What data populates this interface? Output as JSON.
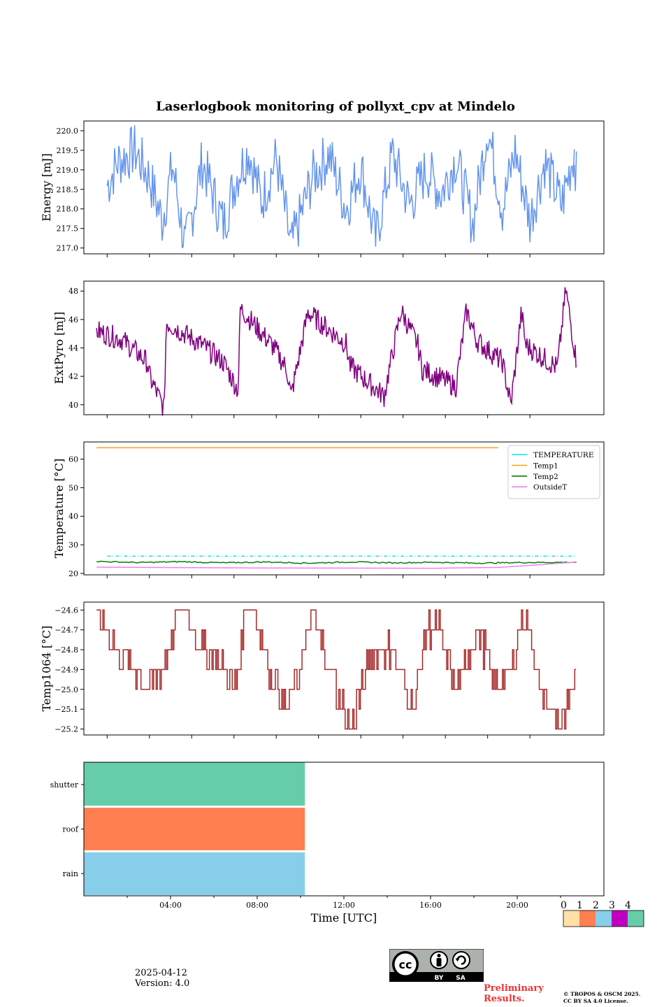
{
  "title": "Laserlogbook monitoring of pollyxt_cpv at Mindelo",
  "chart_data": [
    {
      "type": "line",
      "ylabel": "Energy [mJ]",
      "ylim": [
        216.85,
        220.25
      ],
      "yticks": [
        "217.0",
        "217.5",
        "218.0",
        "218.5",
        "219.0",
        "219.5",
        "220.0"
      ],
      "xlim": [
        -0.6,
        24.0
      ],
      "grid": false,
      "series": [
        {
          "color": "#6495ed",
          "style": "noisy-daily",
          "x": [
            0.5,
            1.0,
            1.8,
            2.5,
            3.1,
            3.6,
            4.2,
            5.0,
            6.0,
            6.6,
            7.2,
            7.8,
            8.5,
            9.2,
            10.2,
            11.0,
            11.8,
            12.5,
            13.2,
            14.0,
            14.8,
            15.6,
            16.3,
            17.0,
            17.8,
            18.5,
            19.2,
            19.8,
            20.5,
            21.2,
            22.0,
            22.6
          ],
          "y": [
            218.6,
            219.2,
            219.5,
            218.8,
            217.7,
            219.1,
            217.0,
            219.2,
            217.6,
            218.8,
            219.5,
            218.2,
            219.3,
            217.0,
            218.8,
            219.4,
            218.0,
            219.1,
            217.2,
            219.4,
            218.1,
            219.0,
            218.4,
            219.3,
            217.6,
            220.1,
            218.0,
            219.5,
            217.7,
            219.2,
            218.1,
            219.5
          ]
        },
        {
          "color": "#6495ed",
          "style": "noisy-daily",
          "x": [
            22.6,
            22.7
          ],
          "y": [
            219.5,
            218.8
          ]
        }
      ]
    },
    {
      "type": "line",
      "ylabel": "ExtPyro [mJ]",
      "ylim": [
        39.3,
        48.7
      ],
      "yticks": [
        "40",
        "42",
        "44",
        "46",
        "48"
      ],
      "xlim": [
        -0.6,
        24.0
      ],
      "grid": false,
      "series": [
        {
          "color": "#800080",
          "style": "noisy-sawtooth",
          "x": [
            0.0,
            1.2,
            2.4,
            2.5,
            3.2,
            3.3,
            5.0,
            6.0,
            6.7,
            6.8,
            8.4,
            9.0,
            9.2,
            10.0,
            11.8,
            12.0,
            13.6,
            14.4,
            15.2,
            15.4,
            17.0,
            17.5,
            18.0,
            19.2,
            19.6,
            20.1,
            20.3,
            21.8,
            22.2,
            22.7
          ],
          "y": [
            45.2,
            44.6,
            43.0,
            42.0,
            39.7,
            45.8,
            44.2,
            43.0,
            41.0,
            46.8,
            44.0,
            42.5,
            40.6,
            46.5,
            44.3,
            42.7,
            40.6,
            46.6,
            44.2,
            42.5,
            41.3,
            46.6,
            44.5,
            43.0,
            40.0,
            46.5,
            44.2,
            42.6,
            48.1,
            43.0
          ]
        }
      ]
    },
    {
      "type": "line",
      "ylabel": "Temperature [°C]",
      "ylim": [
        19.5,
        66.0
      ],
      "yticks": [
        "20",
        "30",
        "40",
        "50",
        "60"
      ],
      "xlim": [
        -0.6,
        24.0
      ],
      "grid": false,
      "legend": "top-right",
      "series": [
        {
          "name": "TEMPERATURE",
          "color": "#00e5ee",
          "style": "dash-dot",
          "x": [
            0.5,
            22.7
          ],
          "y": [
            26.0,
            26.0
          ]
        },
        {
          "name": "Temp1",
          "color": "#f5a623",
          "style": "solid",
          "x": [
            0.0,
            19.0
          ],
          "y": [
            64.0,
            64.0
          ]
        },
        {
          "name": "Temp2",
          "color": "#008000",
          "style": "wavy",
          "x": [
            0.0,
            2.0,
            4.0,
            6.0,
            8.0,
            10.0,
            12.0,
            14.0,
            16.0,
            18.0,
            20.0,
            22.7
          ],
          "y": [
            24.2,
            23.8,
            24.1,
            23.7,
            24.0,
            23.6,
            24.0,
            23.7,
            23.9,
            23.6,
            23.8,
            23.9
          ]
        },
        {
          "name": "OutsideT",
          "color": "#ee82ee",
          "style": "solid",
          "x": [
            0.0,
            8.0,
            16.0,
            19.0,
            20.5,
            22.7
          ],
          "y": [
            22.2,
            21.9,
            21.8,
            22.1,
            22.8,
            24.0
          ]
        }
      ]
    },
    {
      "type": "line",
      "ylabel": "Temp1064 [°C]",
      "ylim": [
        -25.23,
        -24.56
      ],
      "yticks": [
        "−24.6",
        "−24.7",
        "−24.8",
        "−24.9",
        "−25.0",
        "−25.1",
        "−25.2"
      ],
      "xlim": [
        -0.6,
        24.0
      ],
      "grid": false,
      "series": [
        {
          "color": "#a52a2a",
          "style": "stepped",
          "x": [
            0.0,
            0.5,
            1.0,
            1.8,
            2.5,
            3.0,
            3.4,
            3.8,
            4.2,
            5.0,
            6.0,
            6.6,
            7.0,
            7.4,
            8.2,
            9.0,
            9.6,
            10.2,
            11.0,
            12.0,
            13.0,
            14.0,
            15.0,
            15.6,
            16.2,
            17.0,
            18.0,
            19.0,
            19.6,
            20.2,
            21.0,
            22.0,
            22.5,
            22.7
          ],
          "y": [
            -24.6,
            -24.7,
            -24.8,
            -24.9,
            -25.0,
            -24.9,
            -24.8,
            -24.6,
            -24.6,
            -24.8,
            -24.9,
            -25.0,
            -24.6,
            -24.6,
            -24.9,
            -25.1,
            -24.9,
            -24.6,
            -24.9,
            -25.2,
            -24.8,
            -24.8,
            -25.1,
            -24.7,
            -24.7,
            -25.0,
            -24.7,
            -25.0,
            -24.9,
            -24.6,
            -25.0,
            -25.2,
            -25.0,
            -24.8
          ]
        }
      ]
    },
    {
      "type": "heatmap",
      "xlabel": "Time [UTC]",
      "xlim": [
        0,
        24
      ],
      "xticks": [
        "04:00",
        "08:00",
        "12:00",
        "16:00",
        "20:00"
      ],
      "xtick_values": [
        4,
        8,
        12,
        16,
        20
      ],
      "rows": [
        {
          "label": "shutter",
          "value": 4,
          "x_end": 10.2
        },
        {
          "label": "roof",
          "value": 1,
          "x_end": 10.2
        },
        {
          "label": "rain",
          "value": 2,
          "x_end": 10.2
        }
      ],
      "colorbar": {
        "ticks": [
          "0",
          "1",
          "2",
          "3",
          "4"
        ],
        "colors": [
          "#ffe0a8",
          "#ff7f50",
          "#87ceeb",
          "#c000c0",
          "#66cdaa"
        ]
      }
    }
  ],
  "footer": {
    "date": "2025-04-12",
    "version": "Version: 4.0",
    "license_badge": {
      "icon": "creative-commons-by-sa-icon",
      "labels": [
        "BY",
        "SA"
      ]
    },
    "preliminary": "Preliminary Results.",
    "copyright_line1": "© TROPOS & OSCM 2025.",
    "copyright_line2": "CC BY SA 4.0 License."
  }
}
